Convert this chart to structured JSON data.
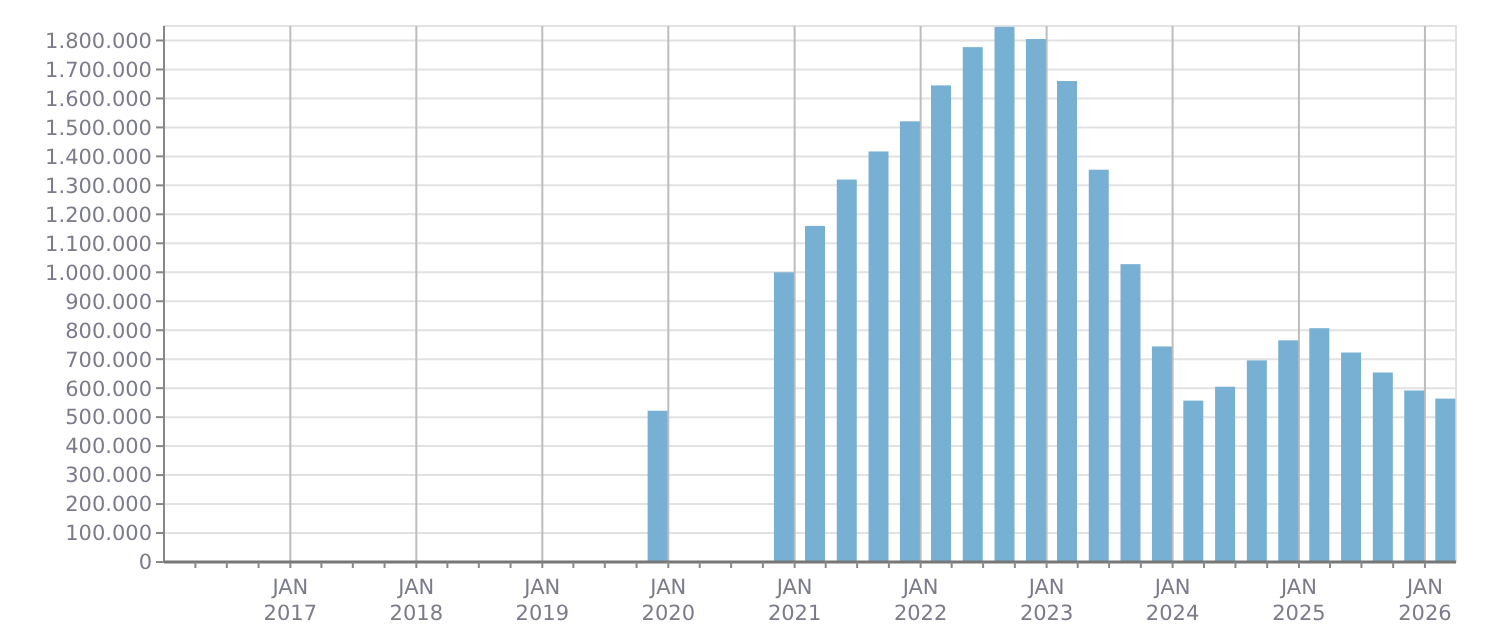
{
  "chart_data": {
    "type": "bar",
    "color": "#78b0d3",
    "x": [
      "2019-12",
      "2020-12",
      "2021-03",
      "2021-06",
      "2021-09",
      "2021-12",
      "2022-03",
      "2022-06",
      "2022-09",
      "2022-12",
      "2023-03",
      "2023-06",
      "2023-09",
      "2023-12",
      "2024-03",
      "2024-06",
      "2024-09",
      "2024-12",
      "2025-03",
      "2025-06",
      "2025-09",
      "2025-12",
      "2026-03"
    ],
    "values": [
      522000,
      1000000,
      1160000,
      1320000,
      1417000,
      1521000,
      1645000,
      1777000,
      1847000,
      1805000,
      1660000,
      1354000,
      1028000,
      744000,
      557000,
      605000,
      696000,
      765000,
      807000,
      723000,
      654000,
      592000,
      564000
    ],
    "xlim": [
      "2016-01",
      "2026-04"
    ],
    "xticks": [
      {
        "value": "2016-04",
        "label": null
      },
      {
        "value": "2016-07",
        "label": null
      },
      {
        "value": "2016-10",
        "label": null
      },
      {
        "value": "2017-01",
        "label": "JAN\n2017"
      },
      {
        "value": "2017-04",
        "label": null
      },
      {
        "value": "2017-07",
        "label": null
      },
      {
        "value": "2017-10",
        "label": null
      },
      {
        "value": "2018-01",
        "label": "JAN\n2018"
      },
      {
        "value": "2018-04",
        "label": null
      },
      {
        "value": "2018-07",
        "label": null
      },
      {
        "value": "2018-10",
        "label": null
      },
      {
        "value": "2019-01",
        "label": "JAN\n2019"
      },
      {
        "value": "2019-04",
        "label": null
      },
      {
        "value": "2019-07",
        "label": null
      },
      {
        "value": "2019-10",
        "label": null
      },
      {
        "value": "2020-01",
        "label": "JAN\n2020"
      },
      {
        "value": "2020-04",
        "label": null
      },
      {
        "value": "2020-07",
        "label": null
      },
      {
        "value": "2020-10",
        "label": null
      },
      {
        "value": "2021-01",
        "label": "JAN\n2021"
      },
      {
        "value": "2021-04",
        "label": null
      },
      {
        "value": "2021-07",
        "label": null
      },
      {
        "value": "2021-10",
        "label": null
      },
      {
        "value": "2022-01",
        "label": "JAN\n2022"
      },
      {
        "value": "2022-04",
        "label": null
      },
      {
        "value": "2022-07",
        "label": null
      },
      {
        "value": "2022-10",
        "label": null
      },
      {
        "value": "2023-01",
        "label": "JAN\n2023"
      },
      {
        "value": "2023-04",
        "label": null
      },
      {
        "value": "2023-07",
        "label": null
      },
      {
        "value": "2023-10",
        "label": null
      },
      {
        "value": "2024-01",
        "label": "JAN\n2024"
      },
      {
        "value": "2024-04",
        "label": null
      },
      {
        "value": "2024-07",
        "label": null
      },
      {
        "value": "2024-10",
        "label": null
      },
      {
        "value": "2025-01",
        "label": "JAN\n2025"
      },
      {
        "value": "2025-04",
        "label": null
      },
      {
        "value": "2025-07",
        "label": null
      },
      {
        "value": "2025-10",
        "label": null
      },
      {
        "value": "2026-01",
        "label": "JAN\n2026"
      }
    ],
    "ylim": [
      0,
      1850000
    ],
    "yticks": [
      {
        "value": 0,
        "label": "0"
      },
      {
        "value": 100000,
        "label": "100.000"
      },
      {
        "value": 200000,
        "label": "200.000"
      },
      {
        "value": 300000,
        "label": "300.000"
      },
      {
        "value": 400000,
        "label": "400.000"
      },
      {
        "value": 500000,
        "label": "500.000"
      },
      {
        "value": 600000,
        "label": "600.000"
      },
      {
        "value": 700000,
        "label": "700.000"
      },
      {
        "value": 800000,
        "label": "800.000"
      },
      {
        "value": 900000,
        "label": "900.000"
      },
      {
        "value": 1000000,
        "label": "1.000.000"
      },
      {
        "value": 1100000,
        "label": "1.100.000"
      },
      {
        "value": 1200000,
        "label": "1.200.000"
      },
      {
        "value": 1300000,
        "label": "1.300.000"
      },
      {
        "value": 1400000,
        "label": "1.400.000"
      },
      {
        "value": 1500000,
        "label": "1.500.000"
      },
      {
        "value": 1600000,
        "label": "1.600.000"
      },
      {
        "value": 1700000,
        "label": "1.700.000"
      },
      {
        "value": 1800000,
        "label": "1.800.000"
      }
    ],
    "grid": true
  }
}
